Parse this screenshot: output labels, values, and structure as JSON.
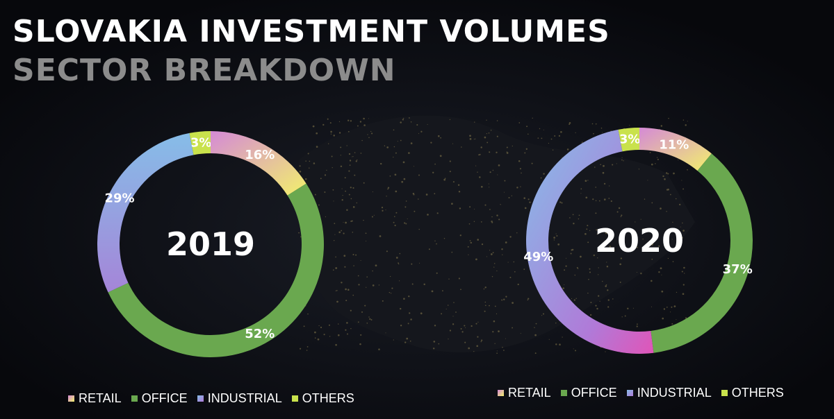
{
  "title": "SLOVAKIA INVESTMENT VOLUMES",
  "subtitle": "SECTOR BREAKDOWN",
  "colors": {
    "retail": [
      "#d58ad6",
      "#f2f06c"
    ],
    "office": "#6aa84f",
    "industrial": [
      "#86bde8",
      "#b07ad8"
    ],
    "others": "#c9e24c"
  },
  "chart_data": [
    {
      "type": "pie",
      "title": "2019",
      "categories": [
        "RETAIL",
        "OFFICE",
        "INDUSTRIAL",
        "OTHERS"
      ],
      "values": [
        16,
        52,
        29,
        3
      ],
      "labels": [
        "16%",
        "52%",
        "29%",
        "3%"
      ],
      "legend": [
        "RETAIL",
        "OFFICE",
        "INDUSTRIAL",
        "OTHERS"
      ],
      "legend_placement": "bottom-left"
    },
    {
      "type": "pie",
      "title": "2020",
      "categories": [
        "RETAIL",
        "OFFICE",
        "INDUSTRIAL",
        "OTHERS"
      ],
      "values": [
        11,
        37,
        49,
        3
      ],
      "labels": [
        "11%",
        "37%",
        "49%",
        "3%"
      ],
      "legend": [
        "RETAIL",
        "OFFICE",
        "INDUSTRIAL",
        "OTHERS"
      ],
      "legend_placement": "bottom-right"
    }
  ]
}
